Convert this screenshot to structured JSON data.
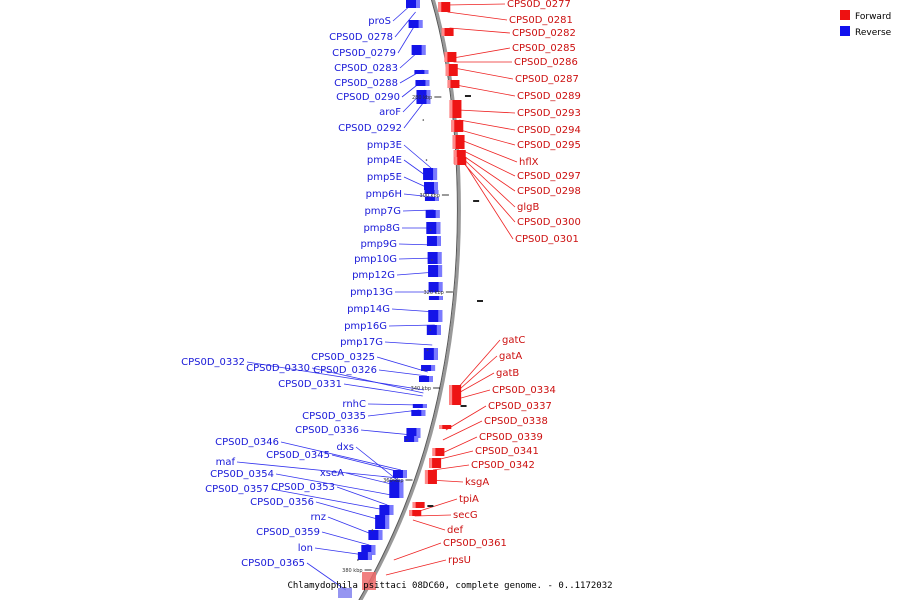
{
  "caption": "Chlamydophila psittaci 08DC60, complete genome. - 0..1172032",
  "legend": {
    "forward": {
      "label": "Forward",
      "color": "#ee1111"
    },
    "reverse": {
      "label": "Reverse",
      "color": "#1111ee"
    }
  },
  "ticks": [
    "280 kbp",
    "300 kbp",
    "320 kbp",
    "340 kbp",
    "360 kbp",
    "380 kbp"
  ],
  "reverse_genes": [
    "proS",
    "CPS0D_0278",
    "CPS0D_0279",
    "CPS0D_0283",
    "CPS0D_0288",
    "CPS0D_0290",
    "aroF",
    "CPS0D_0292",
    "pmp3E",
    "pmp4E",
    "pmp5E",
    "pmp6H",
    "pmp7G",
    "pmp8G",
    "pmp9G",
    "pmp10G",
    "pmp12G",
    "pmp13G",
    "pmp14G",
    "pmp16G",
    "pmp17G",
    "CPS0D_0325",
    "CPS0D_0326",
    "CPS0D_0332",
    "CPS0D_0330",
    "CPS0D_0331",
    "rnhC",
    "CPS0D_0335",
    "CPS0D_0336",
    "CPS0D_0346",
    "dxs",
    "CPS0D_0345",
    "maf",
    "xseA",
    "CPS0D_0354",
    "CPS0D_0353",
    "CPS0D_0357",
    "CPS0D_0356",
    "rnz",
    "CPS0D_0359",
    "lon",
    "CPS0D_0365"
  ],
  "forward_genes": [
    "CPS0D_0277",
    "CPS0D_0281",
    "CPS0D_0282",
    "CPS0D_0285",
    "CPS0D_0286",
    "CPS0D_0287",
    "CPS0D_0289",
    "CPS0D_0293",
    "CPS0D_0294",
    "CPS0D_0295",
    "hflX",
    "CPS0D_0297",
    "CPS0D_0298",
    "glgB",
    "CPS0D_0300",
    "CPS0D_0301",
    "gatC",
    "gatA",
    "gatB",
    "CPS0D_0334",
    "CPS0D_0337",
    "CPS0D_0338",
    "CPS0D_0339",
    "CPS0D_0341",
    "CPS0D_0342",
    "ksgA",
    "tpiA",
    "secG",
    "def",
    "CPS0D_0361",
    "rpsU"
  ]
}
